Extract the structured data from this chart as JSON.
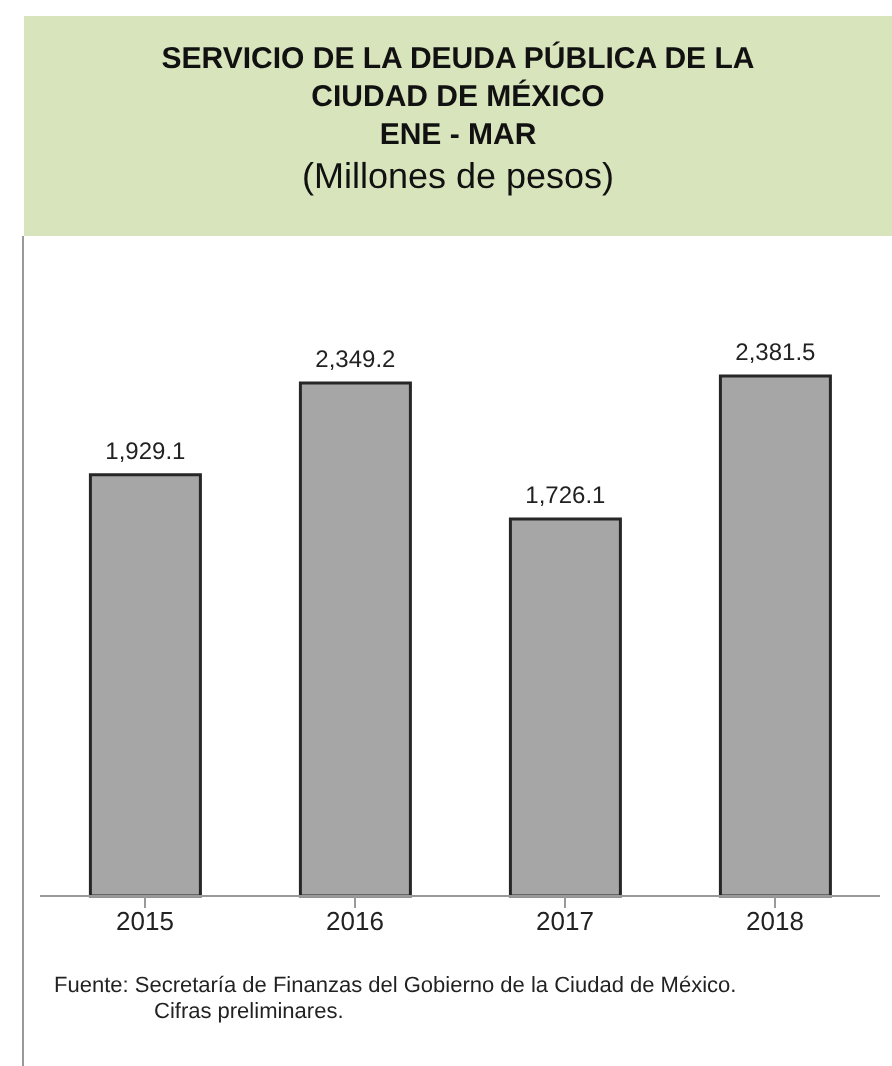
{
  "chart_data": {
    "type": "bar",
    "title": "SERVICIO DE LA DEUDA PÚBLICA DE LA CIUDAD DE MÉXICO\nENE - MAR",
    "subtitle": "(Millones de pesos)",
    "categories": [
      "2015",
      "2016",
      "2017",
      "2018"
    ],
    "values": [
      1929.1,
      2349.2,
      1726.1,
      2381.5
    ],
    "value_labels": [
      "1,929.1",
      "2,349.2",
      "1,726.1",
      "2,381.5"
    ],
    "color": "#a6a6a6",
    "annotations": [
      "Fuente: Secretaría de Finanzas del Gobierno de la Ciudad de México.",
      "Cifras preliminares."
    ]
  }
}
